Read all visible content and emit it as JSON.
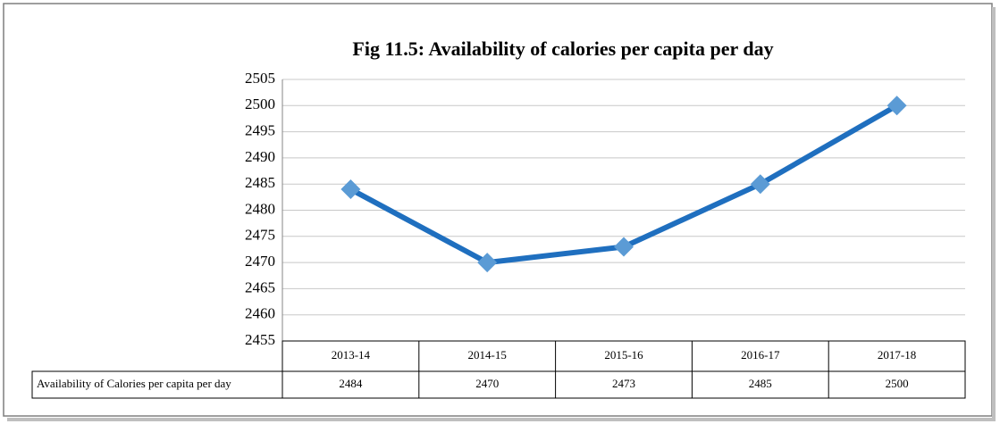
{
  "chart_data": {
    "type": "line",
    "title": "Fig 11.5: Availability of calories per capita per day",
    "categories": [
      "2013-14",
      "2014-15",
      "2015-16",
      "2016-17",
      "2017-18"
    ],
    "series": [
      {
        "name": "Availability of Calories per capita per day",
        "color": "#1f6fbf",
        "marker_color": "#5b9bd5",
        "values": [
          2484,
          2470,
          2473,
          2485,
          2500
        ]
      }
    ],
    "ylim": [
      2455,
      2505
    ],
    "yticks": [
      2455,
      2460,
      2465,
      2470,
      2475,
      2480,
      2485,
      2490,
      2495,
      2500,
      2505
    ],
    "grid": true,
    "data_table": true
  }
}
